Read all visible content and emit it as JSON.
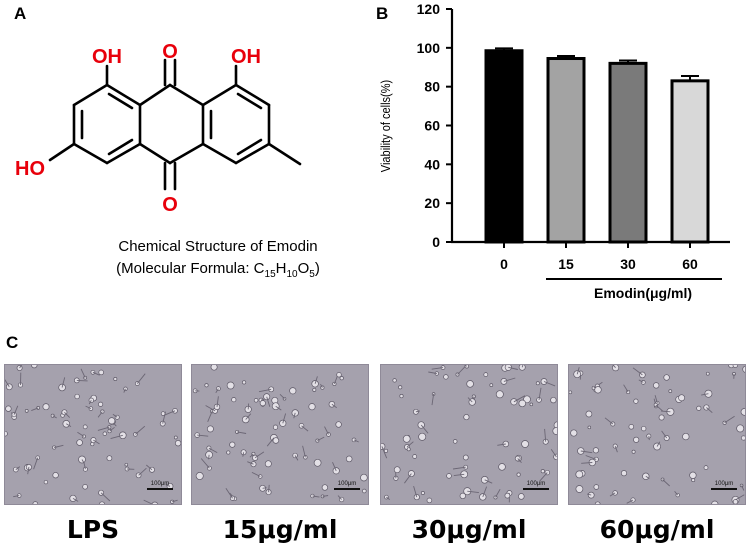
{
  "panels": {
    "a": "A",
    "b": "B",
    "c": "C"
  },
  "structure": {
    "atoms": {
      "oh_left": "OH",
      "oh_right": "OH",
      "o_top": "O",
      "o_bottom": "O",
      "ho": "HO"
    },
    "caption_line1": "Chemical Structure of Emodin",
    "caption_line2_prefix": "(Molecular Formula: C",
    "sub_15": "15",
    "h_letter": "H",
    "sub_10": "10",
    "o_letter": "O",
    "sub_5": "5",
    "caption_line2_suffix": ")",
    "atom_color": "#e8000b"
  },
  "chart_data": {
    "type": "bar",
    "categories": [
      "0",
      "15",
      "30",
      "60"
    ],
    "values": [
      98.5,
      94.5,
      92.0,
      83.0
    ],
    "errors": [
      1.2,
      1.3,
      1.5,
      2.5
    ],
    "bar_colors": [
      "#000000",
      "#a3a3a3",
      "#7a7a7a",
      "#d8d8d8"
    ],
    "ylabel": "Viability of cells(%)",
    "xlabel": "Emodin(μg/ml)",
    "ylim": [
      0,
      120
    ],
    "yticks": [
      0,
      20,
      40,
      60,
      80,
      100,
      120
    ],
    "grid": false
  },
  "micrographs": [
    {
      "label": "LPS",
      "scale": "100μm"
    },
    {
      "label": "15μg/ml",
      "scale": "100μm"
    },
    {
      "label": "30μg/ml",
      "scale": "100μm"
    },
    {
      "label": "60μg/ml",
      "scale": "100μm"
    }
  ]
}
